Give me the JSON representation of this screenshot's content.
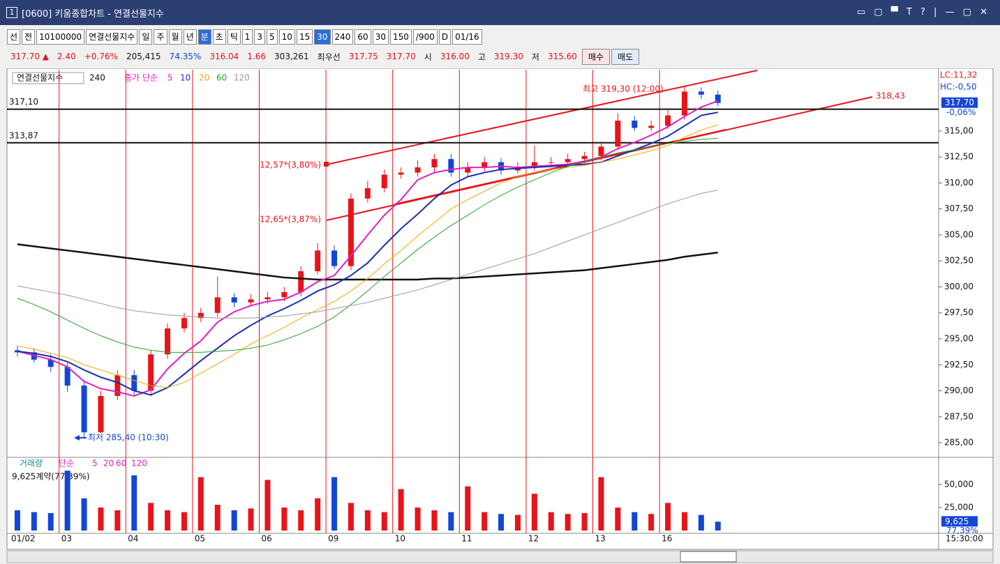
{
  "header": {
    "index": "1",
    "title": "[0600] 키움종합차트 - 연결선물지수"
  },
  "toolbar": {
    "items": [
      "선",
      "전",
      "10100000",
      "연결선물지수",
      "일",
      "주",
      "월",
      "년",
      "분",
      "초",
      "틱",
      "1",
      "3",
      "5",
      "10",
      "15",
      "30",
      "240",
      "60",
      "30",
      "150",
      "/900",
      "D",
      "01/16"
    ]
  },
  "quote_bar": {
    "items": [
      "317.70 ▲",
      "2.40",
      "+0.76%",
      "205,415",
      "74.35%",
      "316.04",
      "1.66",
      "303,261",
      "최우선",
      "317.75",
      "317.70",
      "시",
      "316.00",
      "고",
      "319.30",
      "저",
      "315.60"
    ],
    "buy": "매수",
    "sell": "매도"
  },
  "chart_data": [
    {
      "type": "candlestick",
      "title": "연결선물지수",
      "ma_label": "종가 단순",
      "up_color": "#e8141a",
      "down_color": "#1446d6",
      "categories": [
        "01/02",
        null,
        null,
        "03",
        null,
        null,
        null,
        "04",
        null,
        null,
        null,
        "05",
        null,
        null,
        null,
        "06",
        null,
        null,
        null,
        "09",
        null,
        null,
        null,
        "10",
        null,
        null,
        null,
        "11",
        null,
        null,
        null,
        "12",
        null,
        null,
        null,
        "13",
        null,
        null,
        null,
        "16",
        null,
        null,
        null
      ],
      "open": [
        293.9,
        293.7,
        293.0,
        292.3,
        290.5,
        286.0,
        289.5,
        291.5,
        290.0,
        293.5,
        296.0,
        297.0,
        297.5,
        299.0,
        298.5,
        298.8,
        299.0,
        299.5,
        301.5,
        303.5,
        302.0,
        308.5,
        309.5,
        310.8,
        311.0,
        311.5,
        312.3,
        311.0,
        311.5,
        312.0,
        311.2,
        311.5,
        312.0,
        312.0,
        312.3,
        312.6,
        313.5,
        316.0,
        315.3,
        315.5,
        316.5,
        318.8,
        318.5
      ],
      "high": [
        294.3,
        294.1,
        293.5,
        292.7,
        291.0,
        290.0,
        292.0,
        292.0,
        293.9,
        296.5,
        297.5,
        298.0,
        301.0,
        299.4,
        299.3,
        299.5,
        300.0,
        302.0,
        304.2,
        304.0,
        309.0,
        310.2,
        311.3,
        311.5,
        312.2,
        312.8,
        312.8,
        312.0,
        312.5,
        312.4,
        312.0,
        313.6,
        312.5,
        312.8,
        313.0,
        314.0,
        316.7,
        316.4,
        316.0,
        317.0,
        319.3,
        319.2,
        318.9
      ],
      "low": [
        293.3,
        292.7,
        291.8,
        289.9,
        285.4,
        285.9,
        289.1,
        289.6,
        289.5,
        293.1,
        295.6,
        296.6,
        297.1,
        298.0,
        298.1,
        298.4,
        298.6,
        299.1,
        301.2,
        301.7,
        301.6,
        308.1,
        309.1,
        310.4,
        310.6,
        311.0,
        310.6,
        310.6,
        311.1,
        310.8,
        310.9,
        311.2,
        311.5,
        311.7,
        311.9,
        312.2,
        313.2,
        315.0,
        315.0,
        315.2,
        316.1,
        318.1,
        317.4
      ],
      "close": [
        293.7,
        293.0,
        292.3,
        290.5,
        286.0,
        289.5,
        291.5,
        290.0,
        293.5,
        296.0,
        297.0,
        297.5,
        299.0,
        298.5,
        298.8,
        299.0,
        299.5,
        301.5,
        303.5,
        302.0,
        308.5,
        309.5,
        310.8,
        311.0,
        311.5,
        312.3,
        311.0,
        311.5,
        312.0,
        311.2,
        311.5,
        312.0,
        312.0,
        312.3,
        312.6,
        313.5,
        316.0,
        315.3,
        315.5,
        316.5,
        318.8,
        318.5,
        317.7
      ],
      "series": [
        {
          "name": "240",
          "color": "#111111",
          "values": [
            304.1,
            303.9,
            303.7,
            303.5,
            303.3,
            303.1,
            302.9,
            302.7,
            302.5,
            302.3,
            302.1,
            301.9,
            301.7,
            301.5,
            301.3,
            301.1,
            300.9,
            300.8,
            300.7,
            300.7,
            300.7,
            300.7,
            300.7,
            300.7,
            300.7,
            300.8,
            300.8,
            300.9,
            301.0,
            301.1,
            301.2,
            301.3,
            301.4,
            301.5,
            301.6,
            301.8,
            302.0,
            302.2,
            302.4,
            302.6,
            302.9,
            303.1,
            303.3
          ]
        },
        {
          "name": "5",
          "color": "#e020c0",
          "values": [
            293.8,
            293.4,
            293.0,
            292.3,
            290.9,
            290.2,
            289.9,
            289.5,
            290.1,
            292.1,
            293.6,
            294.8,
            296.6,
            297.6,
            298.2,
            298.6,
            298.8,
            299.5,
            300.5,
            301.1,
            303.0,
            305.0,
            306.9,
            308.4,
            310.3,
            311.0,
            311.3,
            311.5,
            311.5,
            311.6,
            311.5,
            311.6,
            311.7,
            311.8,
            312.1,
            312.5,
            313.3,
            313.9,
            314.6,
            315.4,
            316.4,
            317.3,
            317.9
          ]
        },
        {
          "name": "10",
          "color": "#1a2fb0",
          "values": [
            293.8,
            293.6,
            293.3,
            292.8,
            292.0,
            291.3,
            290.8,
            290.0,
            289.6,
            290.3,
            291.6,
            292.9,
            294.1,
            295.3,
            296.3,
            297.2,
            297.9,
            298.7,
            299.6,
            300.2,
            301.1,
            302.3,
            304.0,
            305.6,
            307.0,
            308.5,
            309.8,
            310.6,
            311.0,
            311.3,
            311.4,
            311.5,
            311.6,
            311.7,
            311.8,
            312.0,
            312.6,
            313.2,
            313.8,
            314.5,
            315.5,
            316.5,
            316.8
          ]
        },
        {
          "name": "20",
          "color": "#f0a800",
          "values": [
            294.3,
            294.0,
            293.6,
            293.2,
            292.5,
            292.0,
            291.5,
            291.0,
            290.5,
            290.3,
            290.8,
            291.7,
            292.6,
            293.5,
            294.5,
            295.3,
            296.1,
            297.0,
            297.8,
            298.6,
            299.6,
            300.8,
            302.2,
            303.5,
            304.9,
            306.2,
            307.5,
            308.4,
            309.2,
            310.0,
            310.6,
            311.0,
            311.3,
            311.5,
            311.7,
            312.0,
            312.3,
            312.7,
            313.1,
            313.6,
            314.4,
            315.1,
            315.6
          ]
        },
        {
          "name": "60",
          "color": "#2aa02a",
          "values": [
            298.9,
            298.3,
            297.6,
            296.8,
            296.0,
            295.3,
            294.7,
            294.2,
            293.9,
            293.7,
            293.7,
            293.7,
            293.8,
            293.9,
            294.1,
            294.4,
            294.9,
            295.5,
            296.2,
            297.1,
            298.3,
            299.6,
            301.0,
            302.3,
            303.6,
            304.8,
            305.9,
            306.9,
            307.9,
            308.8,
            309.6,
            310.3,
            311.0,
            311.6,
            312.1,
            312.5,
            312.9,
            313.2,
            313.5,
            313.8,
            314.0,
            314.2,
            314.3
          ]
        },
        {
          "name": "120",
          "color": "#999999",
          "values": [
            300.1,
            299.8,
            299.5,
            299.2,
            298.8,
            298.4,
            298.0,
            297.7,
            297.5,
            297.3,
            297.2,
            297.1,
            297.0,
            297.0,
            297.0,
            297.1,
            297.2,
            297.4,
            297.6,
            297.9,
            298.2,
            298.5,
            298.9,
            299.3,
            299.7,
            300.2,
            300.7,
            301.2,
            301.7,
            302.2,
            302.7,
            303.2,
            303.8,
            304.4,
            305.0,
            305.6,
            306.2,
            306.8,
            307.4,
            308.0,
            308.5,
            309.0,
            309.3
          ]
        }
      ],
      "ylim": [
        283.66,
        320.9
      ],
      "yticks": [
        {
          "value": 285,
          "label": "285,00"
        },
        {
          "value": 287.5,
          "label": "287,50"
        },
        {
          "value": 290,
          "label": "290,00"
        },
        {
          "value": 292.5,
          "label": "292,50"
        },
        {
          "value": 295,
          "label": "295,00"
        },
        {
          "value": 297.5,
          "label": "297,50"
        },
        {
          "value": 300,
          "label": "300,00"
        },
        {
          "value": 302.5,
          "label": "302,50"
        },
        {
          "value": 305,
          "label": "305,00"
        },
        {
          "value": 307.5,
          "label": "307,50"
        },
        {
          "value": 310,
          "label": "310,00"
        },
        {
          "value": 312.5,
          "label": "312,50"
        },
        {
          "value": 315,
          "label": "315,00"
        }
      ],
      "hlines": [
        {
          "value": 317.1,
          "label": "317,10"
        },
        {
          "value": 313.87,
          "label": "313,87"
        }
      ],
      "last": {
        "value": 317.7,
        "label": "317,70",
        "change": "-0,06%"
      },
      "annotations": {
        "high": "최고 319,30 (12:00)",
        "low": "최저 285,40 (10:30)",
        "channel_top": "12,57*(3,80%)",
        "channel_bottom": "12,65*(3,87%)",
        "trend_end": "318,43",
        "lc": "LC:11,32",
        "hc": "HC:-0,50"
      }
    },
    {
      "type": "bar",
      "title": "거래량",
      "ma_label": "단순",
      "ma_periods": [
        "5",
        "20",
        "60",
        "120"
      ],
      "status": "9,625계약(77,39%)",
      "values": [
        22000,
        20000,
        19000,
        65000,
        35000,
        25000,
        22000,
        60000,
        30000,
        22000,
        20000,
        58000,
        28000,
        22000,
        24000,
        55000,
        25000,
        22000,
        35000,
        58000,
        30000,
        22000,
        20000,
        45000,
        25000,
        22000,
        20000,
        48000,
        20000,
        18000,
        17000,
        40000,
        20000,
        18000,
        19000,
        58000,
        25000,
        20000,
        18000,
        30000,
        20000,
        17000,
        9625
      ],
      "ylim": [
        0,
        78000
      ],
      "yticks": [
        {
          "value": 25000,
          "label": "25,000"
        },
        {
          "value": 50000,
          "label": "50,000"
        }
      ],
      "last": {
        "value": 9625,
        "label": "9,625",
        "ratio": "77,39%"
      },
      "time": "15:30:00"
    }
  ]
}
